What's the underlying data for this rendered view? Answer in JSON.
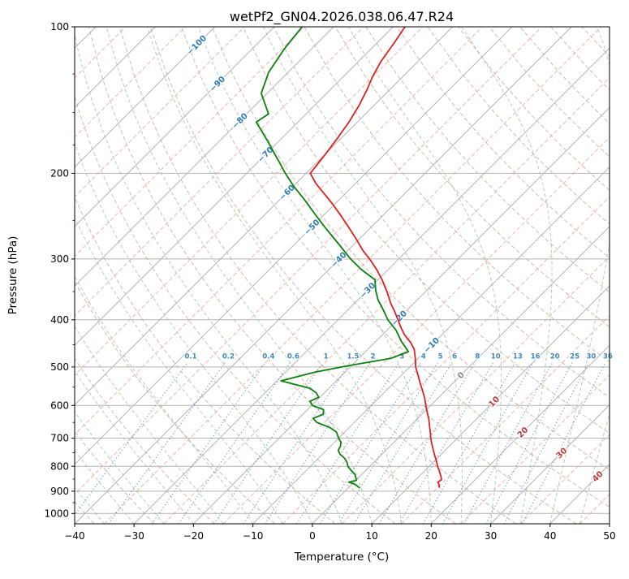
{
  "title": "wetPf2_GN04.2026.038.06.47.R24",
  "axes": {
    "x_label": "Temperature (°C)",
    "y_label": "Pressure (hPa)",
    "x_ticks": [
      -40,
      -30,
      -20,
      -10,
      0,
      10,
      20,
      30,
      40,
      50
    ],
    "y_ticks": [
      100,
      200,
      300,
      400,
      500,
      600,
      700,
      800,
      900,
      1000
    ],
    "y_minor_ticks": [
      125,
      150,
      175,
      250,
      350,
      450,
      550,
      650,
      750,
      850,
      950
    ],
    "x_range": [
      -40,
      50
    ],
    "y_range": [
      100,
      1050
    ]
  },
  "style": {
    "temperature_color": "#dd2020",
    "dewpoint_color": "#0c800c",
    "isotherm_color": "#b3b3b3",
    "isotherm_dashed_color": "#ef9a8f",
    "dry_adiabat_color": "#c5b29c",
    "moist_adiabat_color": "#8cbf8c",
    "mixing_ratio_color": "#3f87bf",
    "label_blue": "#2f7ab9",
    "label_red": "#c23b3b",
    "label_gray": "#8a8a8a",
    "axis_color": "#000000"
  },
  "chart_data": {
    "type": "line",
    "diagram": "skew-t-log-p",
    "title": "wetPf2_GN04.2026.038.06.47.R24",
    "xlabel": "Temperature (°C)",
    "ylabel": "Pressure (hPa)",
    "xlim": [
      -40,
      50
    ],
    "ylim_hPa": [
      1050,
      100
    ],
    "skew": "45deg",
    "grid": true,
    "series": [
      {
        "name": "temperature",
        "color": "red",
        "points": [
          [
            100,
            -68.0
          ],
          [
            107,
            -67.2
          ],
          [
            118,
            -66.2
          ],
          [
            127,
            -65.0
          ],
          [
            134,
            -63.9
          ],
          [
            145,
            -62.5
          ],
          [
            157,
            -61.4
          ],
          [
            170,
            -60.6
          ],
          [
            182,
            -60.0
          ],
          [
            192,
            -59.6
          ],
          [
            200,
            -59.3
          ],
          [
            210,
            -56.6
          ],
          [
            221,
            -53.3
          ],
          [
            232,
            -50.2
          ],
          [
            244,
            -47.1
          ],
          [
            258,
            -43.8
          ],
          [
            274,
            -40.3
          ],
          [
            288,
            -37.5
          ],
          [
            300,
            -34.9
          ],
          [
            315,
            -32.0
          ],
          [
            331,
            -29.3
          ],
          [
            350,
            -26.5
          ],
          [
            370,
            -23.9
          ],
          [
            385,
            -21.8
          ],
          [
            400,
            -19.9
          ],
          [
            415,
            -18.1
          ],
          [
            430,
            -16.2
          ],
          [
            445,
            -14.0
          ],
          [
            460,
            -12.2
          ],
          [
            480,
            -10.5
          ],
          [
            500,
            -9.0
          ],
          [
            520,
            -7.2
          ],
          [
            540,
            -5.5
          ],
          [
            560,
            -3.8
          ],
          [
            580,
            -2.2
          ],
          [
            600,
            -0.8
          ],
          [
            620,
            0.6
          ],
          [
            640,
            2.0
          ],
          [
            660,
            3.2
          ],
          [
            680,
            4.4
          ],
          [
            700,
            5.5
          ],
          [
            720,
            6.7
          ],
          [
            740,
            7.9
          ],
          [
            760,
            9.1
          ],
          [
            780,
            10.3
          ],
          [
            800,
            11.4
          ],
          [
            820,
            12.6
          ],
          [
            840,
            13.7
          ],
          [
            852,
            14.3
          ],
          [
            862,
            14.1
          ],
          [
            872,
            14.7
          ],
          [
            883,
            15.2
          ]
        ]
      },
      {
        "name": "dewpoint",
        "color": "green",
        "points": [
          [
            100,
            -85.3
          ],
          [
            111,
            -84.6
          ],
          [
            124,
            -83.3
          ],
          [
            137,
            -81.0
          ],
          [
            144,
            -78.6
          ],
          [
            151,
            -76.3
          ],
          [
            157,
            -77.0
          ],
          [
            164,
            -74.5
          ],
          [
            172,
            -71.8
          ],
          [
            181,
            -69.0
          ],
          [
            190,
            -66.3
          ],
          [
            200,
            -63.5
          ],
          [
            213,
            -59.8
          ],
          [
            226,
            -56.0
          ],
          [
            242,
            -51.8
          ],
          [
            258,
            -47.8
          ],
          [
            280,
            -42.5
          ],
          [
            300,
            -38.1
          ],
          [
            315,
            -34.6
          ],
          [
            331,
            -30.5
          ],
          [
            348,
            -28.6
          ],
          [
            364,
            -26.6
          ],
          [
            382,
            -24.0
          ],
          [
            400,
            -21.6
          ],
          [
            420,
            -18.5
          ],
          [
            443,
            -15.7
          ],
          [
            465,
            -12.8
          ],
          [
            480,
            -14.6
          ],
          [
            497,
            -20.5
          ],
          [
            512,
            -25.0
          ],
          [
            534,
            -29.3
          ],
          [
            545,
            -25.8
          ],
          [
            553,
            -23.2
          ],
          [
            565,
            -21.4
          ],
          [
            577,
            -20.2
          ],
          [
            588,
            -21.0
          ],
          [
            600,
            -19.9
          ],
          [
            612,
            -17.3
          ],
          [
            625,
            -16.6
          ],
          [
            638,
            -17.6
          ],
          [
            650,
            -16.3
          ],
          [
            665,
            -13.4
          ],
          [
            680,
            -11.4
          ],
          [
            700,
            -10.0
          ],
          [
            714,
            -8.9
          ],
          [
            728,
            -8.3
          ],
          [
            742,
            -8.0
          ],
          [
            756,
            -7.0
          ],
          [
            770,
            -5.6
          ],
          [
            785,
            -4.5
          ],
          [
            800,
            -3.7
          ],
          [
            815,
            -2.5
          ],
          [
            832,
            -1.1
          ],
          [
            845,
            -0.4
          ],
          [
            855,
            0.1
          ],
          [
            862,
            -0.9
          ],
          [
            870,
            0.4
          ],
          [
            878,
            1.2
          ],
          [
            885,
            1.8
          ]
        ]
      }
    ],
    "isotherm_labels": [
      {
        "t": -100,
        "p": 109
      },
      {
        "t": -90,
        "p": 131
      },
      {
        "t": -80,
        "p": 156
      },
      {
        "t": -70,
        "p": 183
      },
      {
        "t": -60,
        "p": 219
      },
      {
        "t": -50,
        "p": 258
      },
      {
        "t": -40,
        "p": 301
      },
      {
        "t": -30,
        "p": 348
      },
      {
        "t": -20,
        "p": 397
      },
      {
        "t": -10,
        "p": 451
      },
      {
        "t": 0,
        "p": 520
      },
      {
        "t": 10,
        "p": 589
      },
      {
        "t": 20,
        "p": 681
      },
      {
        "t": 30,
        "p": 751
      },
      {
        "t": 40,
        "p": 839
      }
    ],
    "mixing_ratio_lines_g_kg": [
      0.1,
      0.2,
      0.4,
      0.6,
      1,
      1.5,
      2,
      3,
      4,
      5,
      6,
      8,
      10,
      13,
      16,
      20,
      25,
      30,
      36
    ],
    "background": {
      "isotherms_solid_C": {
        "from": -120,
        "to": 50,
        "step": 10
      },
      "isotherms_dashed_C": {
        "from": -115,
        "to": 45,
        "step": 10
      },
      "dry_adiabats_theta_C": {
        "from": -40,
        "to": 200,
        "step": 10
      },
      "moist_adiabats_T0_C": {
        "from": -40,
        "to": 45,
        "step": 5
      },
      "isobars_hPa": [
        100,
        200,
        300,
        400,
        500,
        600,
        700,
        800,
        900,
        1000
      ]
    }
  }
}
